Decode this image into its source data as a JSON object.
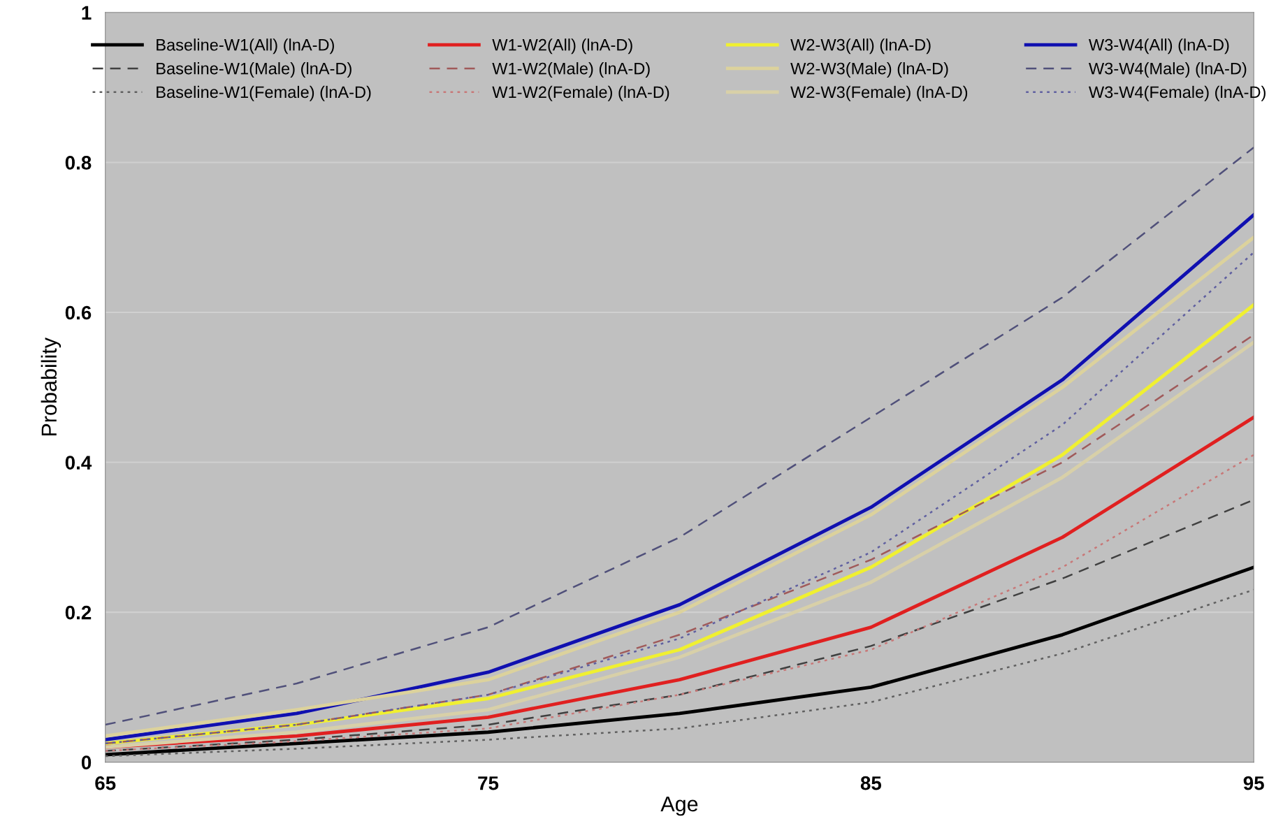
{
  "chart_data": {
    "type": "line",
    "xlabel": "Age",
    "ylabel": "Probability",
    "x": [
      65,
      70,
      75,
      80,
      85,
      90,
      95
    ],
    "xlim": [
      65,
      95
    ],
    "xticks": [
      65,
      75,
      85,
      95
    ],
    "ylim": [
      0,
      1
    ],
    "yticks": [
      0,
      0.2,
      0.4,
      0.6,
      0.8,
      1
    ],
    "grid": "y",
    "legend": "top",
    "marker": "none",
    "series": [
      {
        "name": "Baseline-W1(All) (lnA-D)",
        "color": "#000000",
        "line_style": "solid",
        "values": [
          0.01,
          0.025,
          0.04,
          0.065,
          0.1,
          0.17,
          0.26
        ]
      },
      {
        "name": "W1-W2(All) (lnA-D)",
        "color": "#e02020",
        "line_style": "solid",
        "values": [
          0.02,
          0.035,
          0.06,
          0.11,
          0.18,
          0.3,
          0.46
        ]
      },
      {
        "name": "W2-W3(All) (lnA-D)",
        "color": "#f0f030",
        "line_style": "solid",
        "values": [
          0.025,
          0.05,
          0.085,
          0.15,
          0.26,
          0.41,
          0.61
        ]
      },
      {
        "name": "W3-W4(All) (lnA-D)",
        "color": "#1010b0",
        "line_style": "solid",
        "values": [
          0.03,
          0.065,
          0.12,
          0.21,
          0.34,
          0.51,
          0.73
        ]
      },
      {
        "name": "Baseline-W1(Male) (lnA-D)",
        "color": "#404040",
        "line_style": "dashed",
        "values": [
          0.015,
          0.03,
          0.05,
          0.09,
          0.155,
          0.245,
          0.35
        ]
      },
      {
        "name": "W1-W2(Male) (lnA-D)",
        "color": "#a05a5a",
        "line_style": "dashed",
        "values": [
          0.025,
          0.05,
          0.09,
          0.17,
          0.27,
          0.4,
          0.57
        ]
      },
      {
        "name": "W2-W3(Male) (lnA-D)",
        "color": "#dcd29c",
        "line_style": "solid",
        "values": [
          0.035,
          0.07,
          0.11,
          0.2,
          0.33,
          0.5,
          0.7
        ]
      },
      {
        "name": "W3-W4(Male) (lnA-D)",
        "color": "#50507a",
        "line_style": "dashed",
        "values": [
          0.05,
          0.105,
          0.18,
          0.3,
          0.46,
          0.62,
          0.82
        ]
      },
      {
        "name": "Baseline-W1(Female) (lnA-D)",
        "color": "#606060",
        "line_style": "dotted",
        "values": [
          0.008,
          0.018,
          0.03,
          0.045,
          0.08,
          0.145,
          0.23
        ]
      },
      {
        "name": "W1-W2(Female) (lnA-D)",
        "color": "#c87878",
        "line_style": "dotted",
        "values": [
          0.015,
          0.028,
          0.045,
          0.09,
          0.15,
          0.26,
          0.41
        ]
      },
      {
        "name": "W2-W3(Female) (lnA-D)",
        "color": "#d8d0a8",
        "line_style": "solid",
        "values": [
          0.02,
          0.04,
          0.07,
          0.14,
          0.24,
          0.38,
          0.56
        ]
      },
      {
        "name": "W3-W4(Female) (lnA-D)",
        "color": "#6060a0",
        "line_style": "dotted",
        "values": [
          0.025,
          0.05,
          0.09,
          0.165,
          0.28,
          0.45,
          0.68
        ]
      }
    ]
  }
}
